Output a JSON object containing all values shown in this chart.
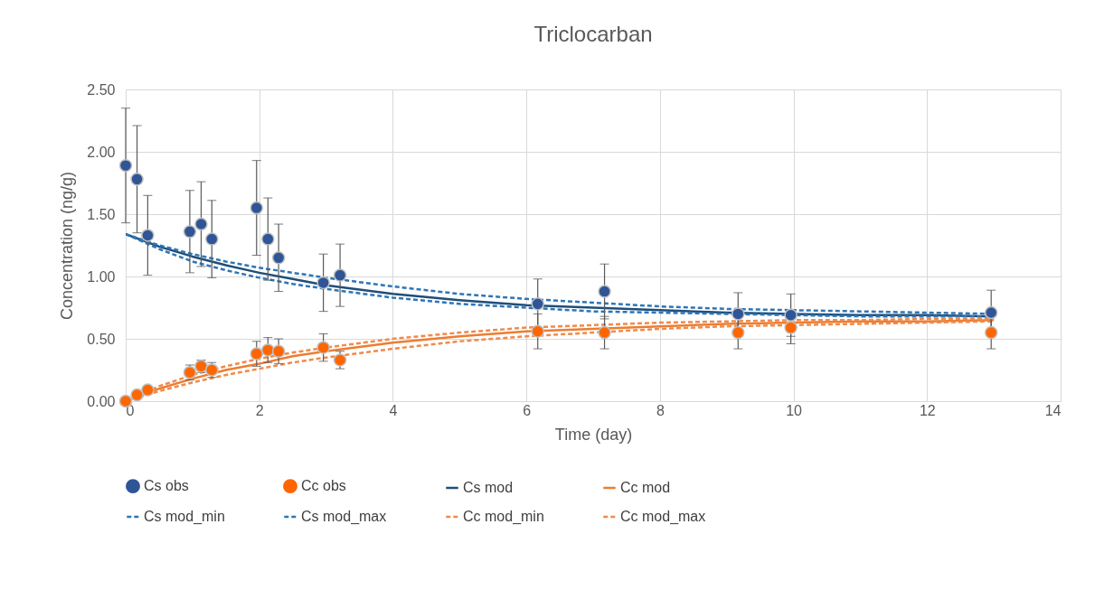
{
  "chart_data": {
    "type": "line",
    "title": "Triclocarban",
    "xlabel": "Time (day)",
    "ylabel": "Concentration (ng/g)",
    "xlim": [
      0,
      14
    ],
    "xticks": [
      0,
      2,
      4,
      6,
      8,
      10,
      12,
      14
    ],
    "ylim": [
      0,
      2.5
    ],
    "yticks": [
      {
        "value": 0,
        "label": "0.00"
      },
      {
        "value": 0.5,
        "label": "0.50"
      },
      {
        "value": 1,
        "label": "1.00"
      },
      {
        "value": 1.5,
        "label": "1.50"
      },
      {
        "value": 2,
        "label": "2.00"
      },
      {
        "value": 2.5,
        "label": "2.50"
      }
    ],
    "grid": true,
    "legend": "bottom",
    "series": [
      {
        "name": "Cs obs",
        "type": "scatter",
        "marker": "circle",
        "color": "#2f5597",
        "x": [
          0,
          0.17,
          0.33,
          0.96,
          1.13,
          1.29,
          1.96,
          2.13,
          2.29,
          2.96,
          3.21,
          6.17,
          7.17,
          9.17,
          9.96,
          12.96
        ],
        "values": [
          1.89,
          1.78,
          1.33,
          1.36,
          1.42,
          1.3,
          1.55,
          1.3,
          1.15,
          0.95,
          1.01,
          0.78,
          0.88,
          0.7,
          0.69,
          0.71
        ],
        "errors": [
          0.46,
          0.43,
          0.32,
          0.33,
          0.34,
          0.31,
          0.38,
          0.33,
          0.27,
          0.23,
          0.25,
          0.2,
          0.22,
          0.17,
          0.17,
          0.18
        ]
      },
      {
        "name": "Cc obs",
        "type": "scatter",
        "marker": "circle",
        "color": "#ff6600",
        "x": [
          0,
          0.17,
          0.33,
          0.96,
          1.13,
          1.29,
          1.96,
          2.13,
          2.29,
          2.96,
          3.21,
          6.17,
          7.17,
          9.17,
          9.96,
          12.96
        ],
        "values": [
          0,
          0.05,
          0.09,
          0.23,
          0.28,
          0.25,
          0.38,
          0.41,
          0.4,
          0.43,
          0.33,
          0.56,
          0.55,
          0.55,
          0.59,
          0.55
        ],
        "errors": [
          null,
          null,
          null,
          0.06,
          0.05,
          0.06,
          0.1,
          0.1,
          0.1,
          0.11,
          0.07,
          0.14,
          0.13,
          0.13,
          0.13,
          0.13
        ]
      },
      {
        "name": "Cs mod",
        "type": "line",
        "line_style": "solid",
        "color": "#1f4e79",
        "x": [
          0,
          0.5,
          1,
          1.5,
          2,
          2.5,
          3,
          4,
          5,
          6,
          7,
          8,
          9,
          10,
          11,
          12,
          13
        ],
        "values": [
          1.34,
          1.24,
          1.16,
          1.09,
          1.03,
          0.98,
          0.93,
          0.86,
          0.81,
          0.77,
          0.75,
          0.73,
          0.71,
          0.7,
          0.69,
          0.69,
          0.68
        ]
      },
      {
        "name": "Cc mod",
        "type": "line",
        "line_style": "solid",
        "color": "#ed7d31",
        "x": [
          0,
          0.5,
          1,
          1.5,
          2,
          2.5,
          3,
          4,
          5,
          6,
          7,
          8,
          9,
          10,
          11,
          12,
          13
        ],
        "values": [
          0,
          0.1,
          0.18,
          0.25,
          0.3,
          0.36,
          0.4,
          0.47,
          0.52,
          0.56,
          0.58,
          0.6,
          0.62,
          0.63,
          0.64,
          0.64,
          0.65
        ]
      },
      {
        "name": "Cs mod_min",
        "type": "line",
        "line_style": "dashed",
        "color": "#2e75b6",
        "x": [
          0,
          0.5,
          1,
          1.5,
          2,
          2.5,
          3,
          4,
          5,
          6,
          7,
          8,
          9,
          10,
          11,
          12,
          13
        ],
        "values": [
          1.34,
          1.22,
          1.12,
          1.05,
          0.99,
          0.94,
          0.9,
          0.83,
          0.78,
          0.75,
          0.72,
          0.71,
          0.7,
          0.69,
          0.68,
          0.68,
          0.68
        ]
      },
      {
        "name": "Cs mod_max",
        "type": "line",
        "line_style": "dashed",
        "color": "#2e75b6",
        "x": [
          0,
          0.5,
          1,
          1.5,
          2,
          2.5,
          3,
          4,
          5,
          6,
          7,
          8,
          9,
          10,
          11,
          12,
          13
        ],
        "values": [
          1.34,
          1.25,
          1.18,
          1.12,
          1.07,
          1.03,
          0.99,
          0.92,
          0.86,
          0.82,
          0.79,
          0.76,
          0.74,
          0.73,
          0.72,
          0.71,
          0.7
        ]
      },
      {
        "name": "Cc mod_min",
        "type": "line",
        "line_style": "dashed",
        "color": "#f08a4b",
        "x": [
          0,
          0.5,
          1,
          1.5,
          2,
          2.5,
          3,
          4,
          5,
          6,
          7,
          8,
          9,
          10,
          11,
          12,
          13
        ],
        "values": [
          0,
          0.08,
          0.15,
          0.21,
          0.26,
          0.31,
          0.35,
          0.42,
          0.48,
          0.52,
          0.55,
          0.58,
          0.6,
          0.61,
          0.62,
          0.63,
          0.64
        ]
      },
      {
        "name": "Cc mod_max",
        "type": "line",
        "line_style": "dashed",
        "color": "#f08a4b",
        "x": [
          0,
          0.5,
          1,
          1.5,
          2,
          2.5,
          3,
          4,
          5,
          6,
          7,
          8,
          9,
          10,
          11,
          12,
          13
        ],
        "values": [
          0,
          0.12,
          0.21,
          0.28,
          0.34,
          0.39,
          0.43,
          0.5,
          0.55,
          0.59,
          0.61,
          0.63,
          0.64,
          0.65,
          0.65,
          0.66,
          0.66
        ]
      }
    ]
  }
}
